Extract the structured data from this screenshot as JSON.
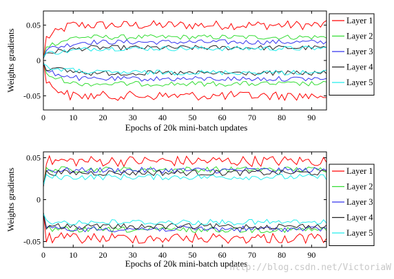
{
  "chart_data": [
    {
      "type": "line",
      "xlabel": "Epochs of 20k mini-batch updates",
      "ylabel": "Weights gradients",
      "xlim": [
        0,
        95
      ],
      "ylim": [
        -0.07,
        0.07
      ],
      "xticks": [
        0,
        10,
        20,
        30,
        40,
        50,
        60,
        70,
        80,
        90
      ],
      "xtick_labels": [
        "0",
        "10",
        "20",
        "30",
        "40",
        "50",
        "60",
        "70",
        "80",
        "90"
      ],
      "yticks": [
        0.05,
        0,
        -0.05
      ],
      "ytick_labels": [
        "0.05",
        "0",
        "-0.05"
      ],
      "grid": false,
      "legend_position": "right",
      "series": [
        {
          "name": "Layer 1",
          "color": "#ff0000"
        },
        {
          "name": "Layer 2",
          "color": "#33dd33"
        },
        {
          "name": "Layer 3",
          "color": "#3333ee"
        },
        {
          "name": "Layer 4",
          "color": "#222222"
        },
        {
          "name": "Layer 5",
          "color": "#22eeee"
        }
      ],
      "pattern": "line",
      "levels": [
        0.05,
        0.033,
        0.026,
        0.018,
        0.017
      ],
      "start": 0.0
    },
    {
      "type": "line",
      "xlabel": "Epochs of 20k mini-batch updates",
      "ylabel": "Weights gradients",
      "xlim": [
        0,
        95
      ],
      "ylim": [
        -0.057,
        0.057
      ],
      "xticks": [
        0,
        10,
        20,
        30,
        40,
        50,
        60,
        70,
        80,
        90
      ],
      "xtick_labels": [
        "0",
        "10",
        "20",
        "30",
        "40",
        "50",
        "60",
        "70",
        "80",
        "90"
      ],
      "yticks": [
        0.05,
        0,
        -0.05
      ],
      "ytick_labels": [
        "0.05",
        "0",
        "-0.05"
      ],
      "grid": false,
      "legend_position": "right",
      "series": [
        {
          "name": "Layer 1",
          "color": "#ff0000"
        },
        {
          "name": "Layer 2",
          "color": "#33dd33"
        },
        {
          "name": "Layer 3",
          "color": "#3333ee"
        },
        {
          "name": "Layer 4",
          "color": "#222222"
        },
        {
          "name": "Layer 5",
          "color": "#22eeee"
        }
      ],
      "pattern": "flat",
      "levels": [
        0.046,
        0.036,
        0.035,
        0.032,
        0.027
      ],
      "start": 0.015
    }
  ],
  "watermark": "http://blog.csdn.net/VictoriaW"
}
